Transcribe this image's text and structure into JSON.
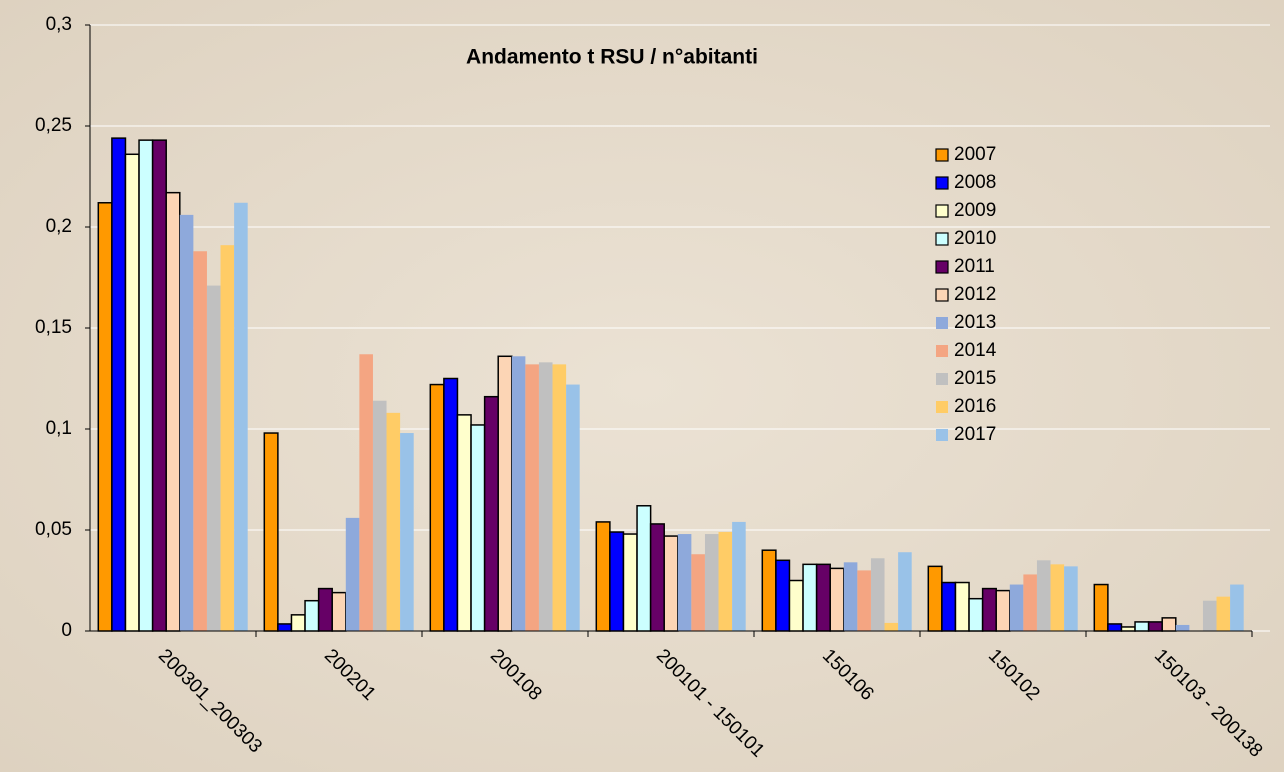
{
  "chart_data": {
    "type": "bar",
    "title": "Andamento t RSU / n°abitanti",
    "categories": [
      "200301_200303",
      "200201",
      "200108",
      "200101 - 150101",
      "150106",
      "150102",
      "150103 - 200138"
    ],
    "series": [
      {
        "name": "2007",
        "color": "#ff9900",
        "border": "#000000",
        "values": [
          0.212,
          0.098,
          0.122,
          0.054,
          0.04,
          0.032,
          0.023
        ]
      },
      {
        "name": "2008",
        "color": "#0000ff",
        "border": "#000000",
        "values": [
          0.244,
          0.0035,
          0.125,
          0.049,
          0.035,
          0.024,
          0.0035
        ]
      },
      {
        "name": "2009",
        "color": "#ffffcc",
        "border": "#000000",
        "values": [
          0.236,
          0.008,
          0.107,
          0.048,
          0.025,
          0.024,
          0.002
        ]
      },
      {
        "name": "2010",
        "color": "#ccffff",
        "border": "#000000",
        "values": [
          0.243,
          0.015,
          0.102,
          0.062,
          0.033,
          0.016,
          0.0045
        ]
      },
      {
        "name": "2011",
        "color": "#660066",
        "border": "#000000",
        "values": [
          0.243,
          0.021,
          0.116,
          0.053,
          0.033,
          0.021,
          0.0045
        ]
      },
      {
        "name": "2012",
        "color": "#fcd5b5",
        "border": "#000000",
        "values": [
          0.217,
          0.019,
          0.136,
          0.047,
          0.031,
          0.02,
          0.0065
        ]
      },
      {
        "name": "2013",
        "color": "#8ea9db",
        "values": [
          0.206,
          0.056,
          0.136,
          0.048,
          0.034,
          0.023,
          0.003
        ]
      },
      {
        "name": "2014",
        "color": "#f4a582",
        "values": [
          0.188,
          0.137,
          0.132,
          0.038,
          0.03,
          0.028,
          0
        ]
      },
      {
        "name": "2015",
        "color": "#c0c0c0",
        "values": [
          0.171,
          0.114,
          0.133,
          0.048,
          0.036,
          0.035,
          0.015
        ]
      },
      {
        "name": "2016",
        "color": "#ffcc66",
        "values": [
          0.191,
          0.108,
          0.132,
          0.049,
          0.004,
          0.033,
          0.017
        ]
      },
      {
        "name": "2017",
        "color": "#99c2e8",
        "values": [
          0.212,
          0.098,
          0.122,
          0.054,
          0.039,
          0.032,
          0.023
        ]
      }
    ],
    "ylim": [
      0,
      0.3
    ],
    "yticks": [
      0,
      {
        "value": 0.05,
        "label": "0,05"
      },
      {
        "value": 0.1,
        "label": "0,1"
      },
      {
        "value": 0.15,
        "label": "0,15"
      },
      {
        "value": 0.2,
        "label": "0,2"
      },
      {
        "value": 0.25,
        "label": "0,25"
      },
      {
        "value": 0.3,
        "label": "0,3"
      }
    ],
    "grid": true
  }
}
